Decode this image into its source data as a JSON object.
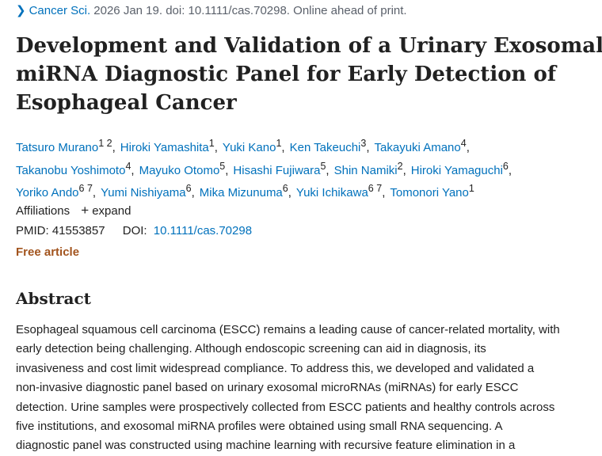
{
  "citation": {
    "journal": "Cancer Sci.",
    "rest": "2026 Jan 19. doi: 10.1111/cas.70298. Online ahead of print."
  },
  "title_lines": [
    "Development and Validation of a Urinary Exosomal",
    "miRNA Diagnostic Panel for Early Detection of",
    "Esophageal Cancer"
  ],
  "author_lines": [
    [
      {
        "name": "Tatsuro Murano",
        "aff": "1 2"
      },
      {
        "name": "Hiroki Yamashita",
        "aff": "1"
      },
      {
        "name": "Yuki Kano",
        "aff": "1"
      },
      {
        "name": "Ken Takeuchi",
        "aff": "3"
      },
      {
        "name": "Takayuki Amano",
        "aff": "4"
      }
    ],
    [
      {
        "name": "Takanobu Yoshimoto",
        "aff": "4"
      },
      {
        "name": "Mayuko Otomo",
        "aff": "5"
      },
      {
        "name": "Hisashi Fujiwara",
        "aff": "5"
      },
      {
        "name": "Shin Namiki",
        "aff": "2"
      },
      {
        "name": "Hiroki Yamaguchi",
        "aff": "6"
      }
    ],
    [
      {
        "name": "Yoriko Ando",
        "aff": "6 7"
      },
      {
        "name": "Yumi Nishiyama",
        "aff": "6"
      },
      {
        "name": "Mika Mizunuma",
        "aff": "6"
      },
      {
        "name": "Yuki Ichikawa",
        "aff": "6 7"
      },
      {
        "name": "Tomonori Yano",
        "aff": "1"
      }
    ]
  ],
  "affiliations": {
    "label": "Affiliations",
    "expand": "expand"
  },
  "ids": {
    "pmid_label": "PMID:",
    "pmid": "41553857",
    "doi_label": "DOI:",
    "doi": "10.1111/cas.70298"
  },
  "free_article": "Free article",
  "abstract": {
    "heading": "Abstract",
    "lines": [
      "Esophageal squamous cell carcinoma (ESCC) remains a leading cause of cancer-related mortality, with",
      "early detection being challenging. Although endoscopic screening can aid in diagnosis, its",
      "invasiveness and cost limit widespread compliance. To address this, we developed and validated a",
      "non-invasive diagnostic panel based on urinary exosomal microRNAs (miRNAs) for early ESCC",
      "detection. Urine samples were prospectively collected from ESCC patients and healthy controls across",
      "five institutions, and exosomal miRNA profiles were obtained using small RNA sequencing. A",
      "diagnostic panel was constructed using machine learning with recursive feature elimination in a"
    ]
  }
}
